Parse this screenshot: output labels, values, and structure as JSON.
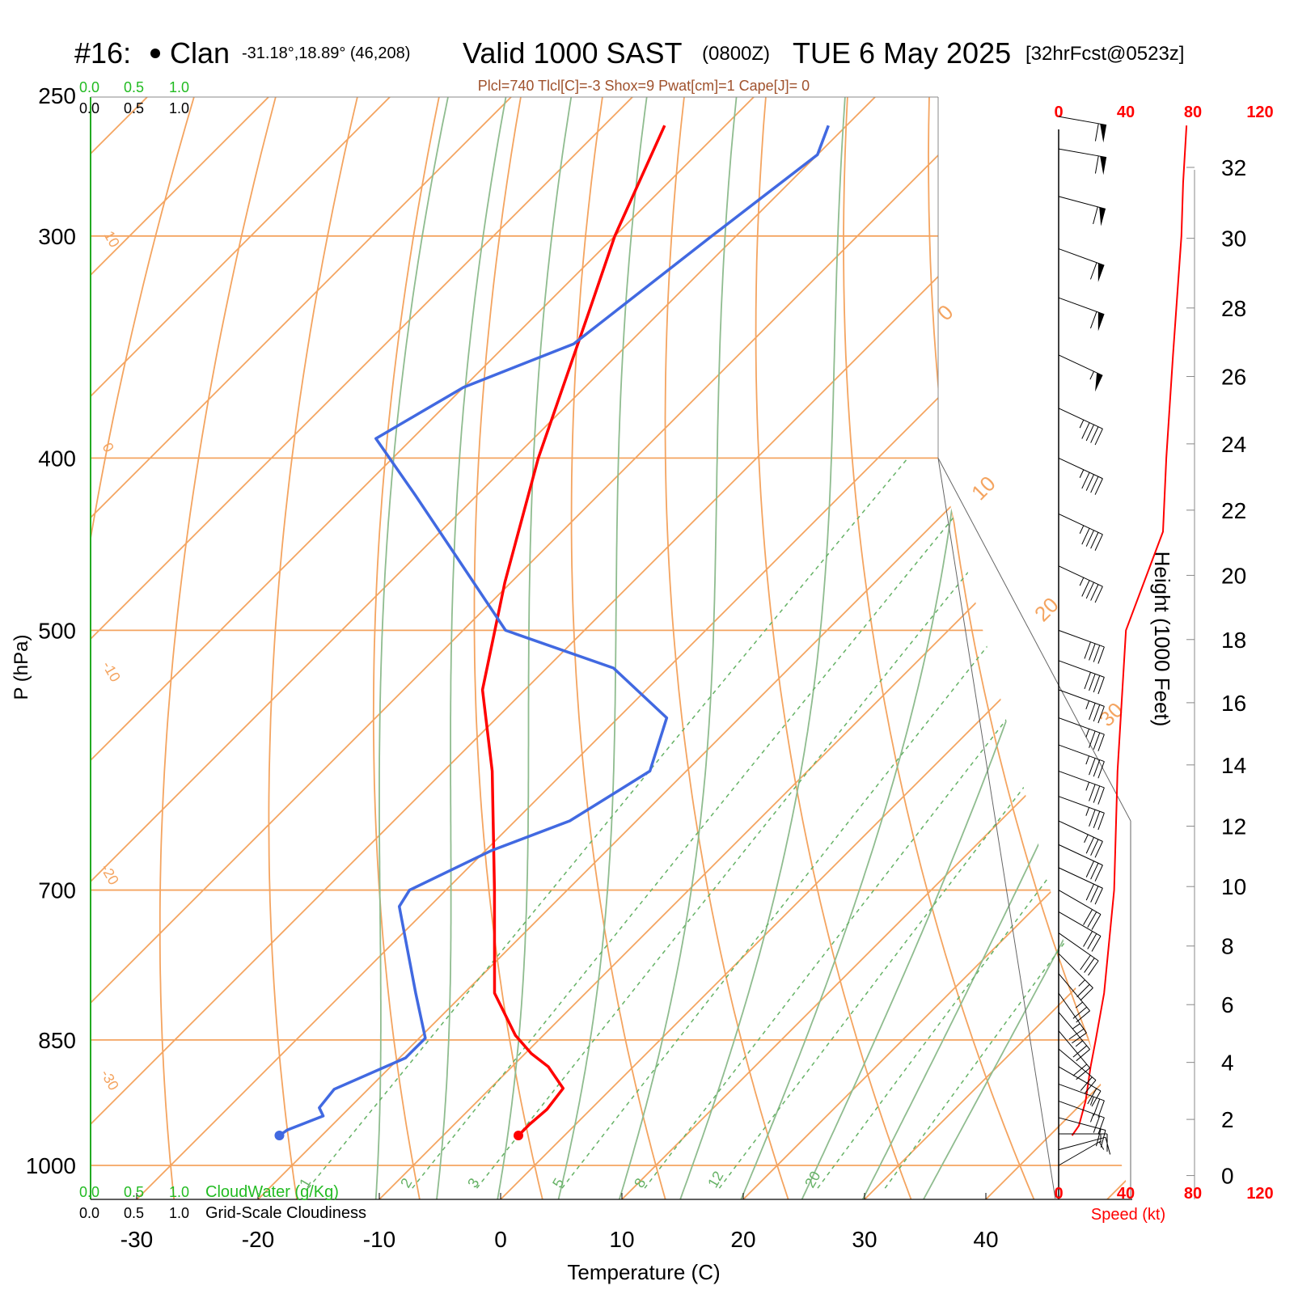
{
  "header": {
    "station": "#16:",
    "name": "Clan",
    "coords": "-31.18°,18.89° (46,208)",
    "valid": "Valid 1000 SAST",
    "zulu": "(0800Z)",
    "date": "TUE 6 May 2025",
    "forecast": "[32hrFcst@0523z]"
  },
  "indices": "Plcl=740 Tlcl[C]=-3 Shox=9 Pwat[cm]=1 Cape[J]= 0",
  "colors": {
    "temperature": "#ff0000",
    "dewpoint": "#4169e1",
    "isotherm": "#f4a460",
    "moist_adiabat": "#8fbc8f",
    "mixing_ratio": "#66b266",
    "speed": "#ff0000",
    "cloud_water": "#22bb22"
  },
  "cloud_scales": {
    "top_green": [
      "0.0",
      "0.5",
      "1.0"
    ],
    "top_black": [
      "0.0",
      "0.5",
      "1.0"
    ],
    "bottom_green": [
      "0.0",
      "0.5",
      "1.0"
    ],
    "bottom_black": [
      "0.0",
      "0.5",
      "1.0"
    ],
    "cloud_water_label": "CloudWater (g/Kg)",
    "cloudiness_label": "Grid-Scale Cloudiness"
  },
  "chart_data": {
    "type": "skew-t",
    "xlabel": "Temperature (C)",
    "ylabel": "P (hPa)",
    "xlim": [
      -30,
      45
    ],
    "ylim_hpa": [
      1000,
      250
    ],
    "x_ticks": [
      -30,
      -20,
      -10,
      0,
      10,
      20,
      30,
      40
    ],
    "p_ticks": [
      250,
      300,
      400,
      500,
      700,
      850,
      1000
    ],
    "isotherm_labels": [
      {
        "text": "10",
        "p": 300
      },
      {
        "text": "0",
        "p": 400
      },
      {
        "text": "-10",
        "p": 505
      },
      {
        "text": "-20",
        "p": 650
      },
      {
        "text": "-30",
        "p": 885
      },
      {
        "text": "0",
        "p": 340
      },
      {
        "text": "10",
        "p": 420
      },
      {
        "text": "20",
        "p": 485
      },
      {
        "text": "30",
        "p": 560
      }
    ],
    "mixing_ratio_labels": [
      "1",
      "2",
      "3",
      "5",
      "8",
      "12",
      "20"
    ],
    "temperature": {
      "p": [
        962,
        948,
        930,
        905,
        880,
        865,
        845,
        800,
        700,
        600,
        540,
        470,
        400,
        330,
        300,
        260
      ],
      "t": [
        -3.8,
        -3.8,
        -3.6,
        -4.0,
        -7.0,
        -9.5,
        -12.3,
        -17.5,
        -26,
        -36,
        -43.5,
        -50.5,
        -58,
        -66,
        -70,
        -75
      ]
    },
    "dewpoint": {
      "p": [
        962,
        955,
        938,
        928,
        906,
        870,
        848,
        800,
        715,
        700,
        665,
        640,
        600,
        560,
        525,
        500,
        455,
        420,
        390,
        365,
        345,
        300,
        270,
        260
      ],
      "td": [
        -23.5,
        -23.3,
        -21.5,
        -22.5,
        -22.8,
        -19.5,
        -19.5,
        -24.0,
        -32.5,
        -33.0,
        -29.5,
        -25.5,
        -23.0,
        -26.0,
        -34.5,
        -46.5,
        -56.5,
        -65,
        -73,
        -70,
        -64.5,
        -62.0,
        -60.0,
        -61.5
      ]
    },
    "height_axis": {
      "label": "Height (1000 Feet)",
      "ticks": [
        0,
        2,
        4,
        6,
        8,
        10,
        12,
        14,
        16,
        18,
        20,
        22,
        24,
        26,
        28,
        30,
        32
      ]
    },
    "wind_speed_axis": {
      "label": "Speed (kt)",
      "ticks": [
        "0",
        "40",
        "80",
        "120"
      ]
    },
    "wind_speed": {
      "p": [
        962,
        950,
        920,
        880,
        850,
        800,
        700,
        600,
        500,
        440,
        400,
        350,
        300,
        280,
        260
      ],
      "kt": [
        8,
        12,
        16,
        19,
        22,
        27,
        33,
        35,
        40,
        62,
        64,
        68,
        73,
        74,
        76
      ]
    },
    "wind_barbs": [
      {
        "p": 1000,
        "dir": 240,
        "kt": 5
      },
      {
        "p": 980,
        "dir": 255,
        "kt": 10
      },
      {
        "p": 960,
        "dir": 270,
        "kt": 15
      },
      {
        "p": 940,
        "dir": 285,
        "kt": 20
      },
      {
        "p": 920,
        "dir": 290,
        "kt": 25
      },
      {
        "p": 900,
        "dir": 290,
        "kt": 25
      },
      {
        "p": 880,
        "dir": 300,
        "kt": 20
      },
      {
        "p": 860,
        "dir": 310,
        "kt": 20
      },
      {
        "p": 840,
        "dir": 320,
        "kt": 20
      },
      {
        "p": 820,
        "dir": 320,
        "kt": 25
      },
      {
        "p": 800,
        "dir": 325,
        "kt": 25
      },
      {
        "p": 780,
        "dir": 320,
        "kt": 25
      },
      {
        "p": 760,
        "dir": 315,
        "kt": 25
      },
      {
        "p": 740,
        "dir": 305,
        "kt": 30
      },
      {
        "p": 720,
        "dir": 300,
        "kt": 30
      },
      {
        "p": 700,
        "dir": 300,
        "kt": 30
      },
      {
        "p": 680,
        "dir": 295,
        "kt": 30
      },
      {
        "p": 660,
        "dir": 295,
        "kt": 30
      },
      {
        "p": 640,
        "dir": 295,
        "kt": 35
      },
      {
        "p": 620,
        "dir": 290,
        "kt": 35
      },
      {
        "p": 600,
        "dir": 290,
        "kt": 35
      },
      {
        "p": 580,
        "dir": 290,
        "kt": 35
      },
      {
        "p": 560,
        "dir": 290,
        "kt": 35
      },
      {
        "p": 540,
        "dir": 290,
        "kt": 35
      },
      {
        "p": 520,
        "dir": 290,
        "kt": 40
      },
      {
        "p": 500,
        "dir": 290,
        "kt": 40
      },
      {
        "p": 460,
        "dir": 295,
        "kt": 45
      },
      {
        "p": 430,
        "dir": 295,
        "kt": 45
      },
      {
        "p": 400,
        "dir": 295,
        "kt": 45
      },
      {
        "p": 375,
        "dir": 295,
        "kt": 45
      },
      {
        "p": 350,
        "dir": 295,
        "kt": 55
      },
      {
        "p": 325,
        "dir": 290,
        "kt": 60
      },
      {
        "p": 305,
        "dir": 290,
        "kt": 60
      },
      {
        "p": 285,
        "dir": 285,
        "kt": 60
      },
      {
        "p": 268,
        "dir": 280,
        "kt": 60
      },
      {
        "p": 257,
        "dir": 280,
        "kt": 60
      }
    ]
  }
}
